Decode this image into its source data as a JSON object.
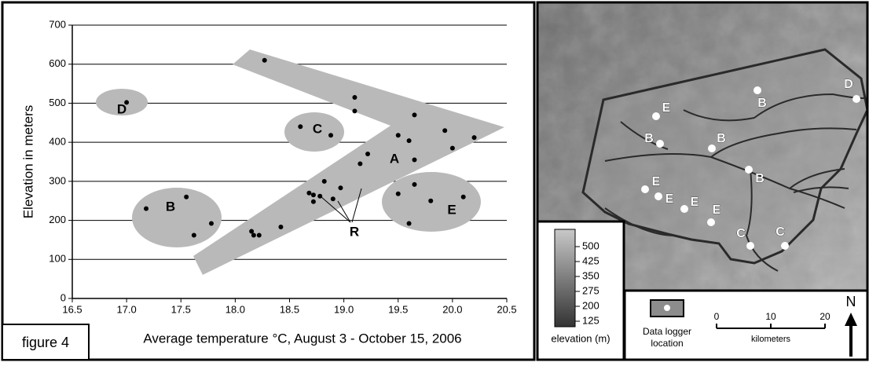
{
  "chart_data": {
    "type": "scatter",
    "x_label": "Average temperature °C, August 3 - October 15, 2006",
    "y_label": "Elevation in meters",
    "figure_label": "figure 4",
    "x": [
      17.0,
      17.18,
      17.55,
      17.62,
      17.78,
      18.15,
      18.17,
      18.22,
      18.42,
      18.27,
      18.6,
      18.88,
      18.68,
      18.72,
      18.72,
      18.78,
      18.82,
      18.9,
      18.97,
      19.1,
      19.1,
      19.15,
      19.22,
      19.5,
      19.5,
      19.6,
      19.6,
      19.65,
      19.65,
      19.65,
      19.8,
      19.93,
      20.0,
      20.1,
      20.2
    ],
    "y": [
      502,
      230,
      260,
      162,
      192,
      172,
      162,
      162,
      183,
      610,
      440,
      418,
      270,
      265,
      248,
      262,
      300,
      255,
      283,
      515,
      480,
      345,
      370,
      418,
      268,
      404,
      192,
      470,
      355,
      292,
      250,
      430,
      385,
      260,
      412
    ],
    "color": "#000000",
    "xlim": [
      16.5,
      20.5
    ],
    "ylim": [
      0,
      700
    ],
    "xticks": [
      16.5,
      {
        "value": 17,
        "label": "17.0"
      },
      17.5,
      {
        "value": 18,
        "label": "18.0"
      },
      18.5,
      {
        "value": 19,
        "label": "19.0"
      },
      19.5,
      {
        "value": 20,
        "label": "20.0"
      },
      20.5
    ],
    "yticks": [
      0,
      100,
      200,
      300,
      400,
      500,
      600,
      700
    ],
    "grid": true,
    "annotations": [
      "A",
      "B",
      "C",
      "D",
      "E",
      "R"
    ]
  },
  "map": {
    "logger_labels": [
      "E",
      "B",
      "D",
      "B",
      "B",
      "B",
      "E",
      "E",
      "E",
      "E",
      "C",
      "C"
    ],
    "elevation_ticks": [
      500,
      425,
      350,
      275,
      200,
      125
    ],
    "elevation_title": "elevation (m)",
    "logger_legend": [
      "Data logger",
      "location"
    ],
    "scale_ticks": [
      0,
      10,
      20
    ],
    "scale_unit": "kilometers",
    "north": "N"
  }
}
